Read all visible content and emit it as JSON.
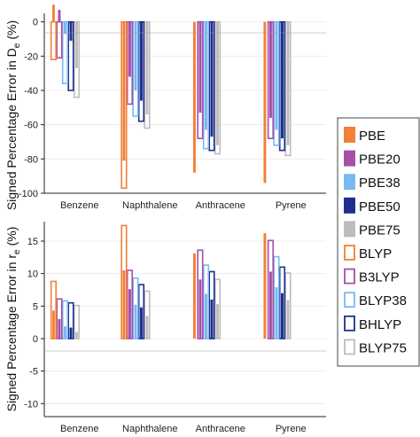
{
  "chart_data": [
    {
      "type": "bar",
      "ylabel": "Signed Percentage Error in D",
      "ylabel_sub": "e",
      "ylabel_unit": "(%)",
      "categories": [
        "Benzene",
        "Naphthalene",
        "Anthracene",
        "Pyrene"
      ],
      "ylim": [
        -100,
        5
      ],
      "yticks": [
        0,
        -20,
        -40,
        -60,
        -80,
        -100
      ],
      "series": [
        {
          "name": "PBE",
          "style": "filled",
          "values": [
            10,
            -81,
            -88,
            -94
          ]
        },
        {
          "name": "PBE20",
          "style": "filled",
          "values": [
            7,
            -32,
            -53,
            -56
          ]
        },
        {
          "name": "PBE38",
          "style": "filled",
          "values": [
            -7,
            -40,
            -63,
            -63
          ]
        },
        {
          "name": "PBE50",
          "style": "filled",
          "values": [
            -11,
            -46,
            -67,
            -68
          ]
        },
        {
          "name": "PBE75",
          "style": "filled",
          "values": [
            -27,
            -54,
            -72,
            -72
          ]
        },
        {
          "name": "BLYP",
          "style": "outline",
          "values": [
            -22,
            -97,
            null,
            null
          ]
        },
        {
          "name": "B3LYP",
          "style": "outline",
          "values": [
            -21,
            -48,
            -68,
            -68
          ]
        },
        {
          "name": "BLYP38",
          "style": "outline",
          "values": [
            -36,
            -55,
            -74,
            -72
          ]
        },
        {
          "name": "BHLYP",
          "style": "outline",
          "values": [
            -40,
            -58,
            -75,
            -75
          ]
        },
        {
          "name": "BLYP75",
          "style": "outline",
          "values": [
            -44,
            -62,
            -77,
            -78
          ]
        }
      ]
    },
    {
      "type": "bar",
      "ylabel": "Signed Percentage Error in r",
      "ylabel_sub": "e",
      "ylabel_unit": "(%)",
      "categories": [
        "Benzene",
        "Naphthalene",
        "Anthracene",
        "Pyrene"
      ],
      "ylim": [
        -12,
        18
      ],
      "yticks": [
        15,
        10,
        5,
        0,
        -5,
        -10
      ],
      "series": [
        {
          "name": "PBE",
          "style": "filled",
          "values": [
            4.3,
            10.5,
            13.1,
            16.2
          ]
        },
        {
          "name": "PBE20",
          "style": "filled",
          "values": [
            3.0,
            7.6,
            9.1,
            10.3
          ]
        },
        {
          "name": "PBE38",
          "style": "filled",
          "values": [
            1.9,
            5.2,
            6.9,
            7.9
          ]
        },
        {
          "name": "PBE50",
          "style": "filled",
          "values": [
            1.7,
            4.8,
            6.0,
            7.0
          ]
        },
        {
          "name": "PBE75",
          "style": "filled",
          "values": [
            1.0,
            3.5,
            5.3,
            5.9
          ]
        },
        {
          "name": "BLYP",
          "style": "outline",
          "values": [
            8.8,
            17.4,
            null,
            null
          ]
        },
        {
          "name": "B3LYP",
          "style": "outline",
          "values": [
            6.1,
            10.5,
            13.6,
            15.1
          ]
        },
        {
          "name": "BLYP38",
          "style": "outline",
          "values": [
            5.8,
            9.3,
            11.3,
            12.6
          ]
        },
        {
          "name": "BHLYP",
          "style": "outline",
          "values": [
            5.5,
            8.3,
            10.3,
            11.0
          ]
        },
        {
          "name": "BLYP75",
          "style": "outline",
          "values": [
            5.1,
            7.3,
            9.1,
            10.1
          ]
        }
      ]
    }
  ],
  "legend": {
    "items": [
      "PBE",
      "PBE20",
      "PBE38",
      "PBE50",
      "PBE75",
      "BLYP",
      "B3LYP",
      "BLYP38",
      "BHLYP",
      "BLYP75"
    ],
    "placement": "right"
  },
  "colors": {
    "PBE": "#f28036",
    "PBE20": "#a74fa8",
    "PBE38": "#7ab8f2",
    "PBE50": "#1f2f8f",
    "PBE75": "#bdbdbd",
    "BLYP": "#f28036",
    "B3LYP": "#a74fa8",
    "BLYP38": "#7ab8f2",
    "BHLYP": "#1f2f8f",
    "BLYP75": "#bdbdbd"
  }
}
